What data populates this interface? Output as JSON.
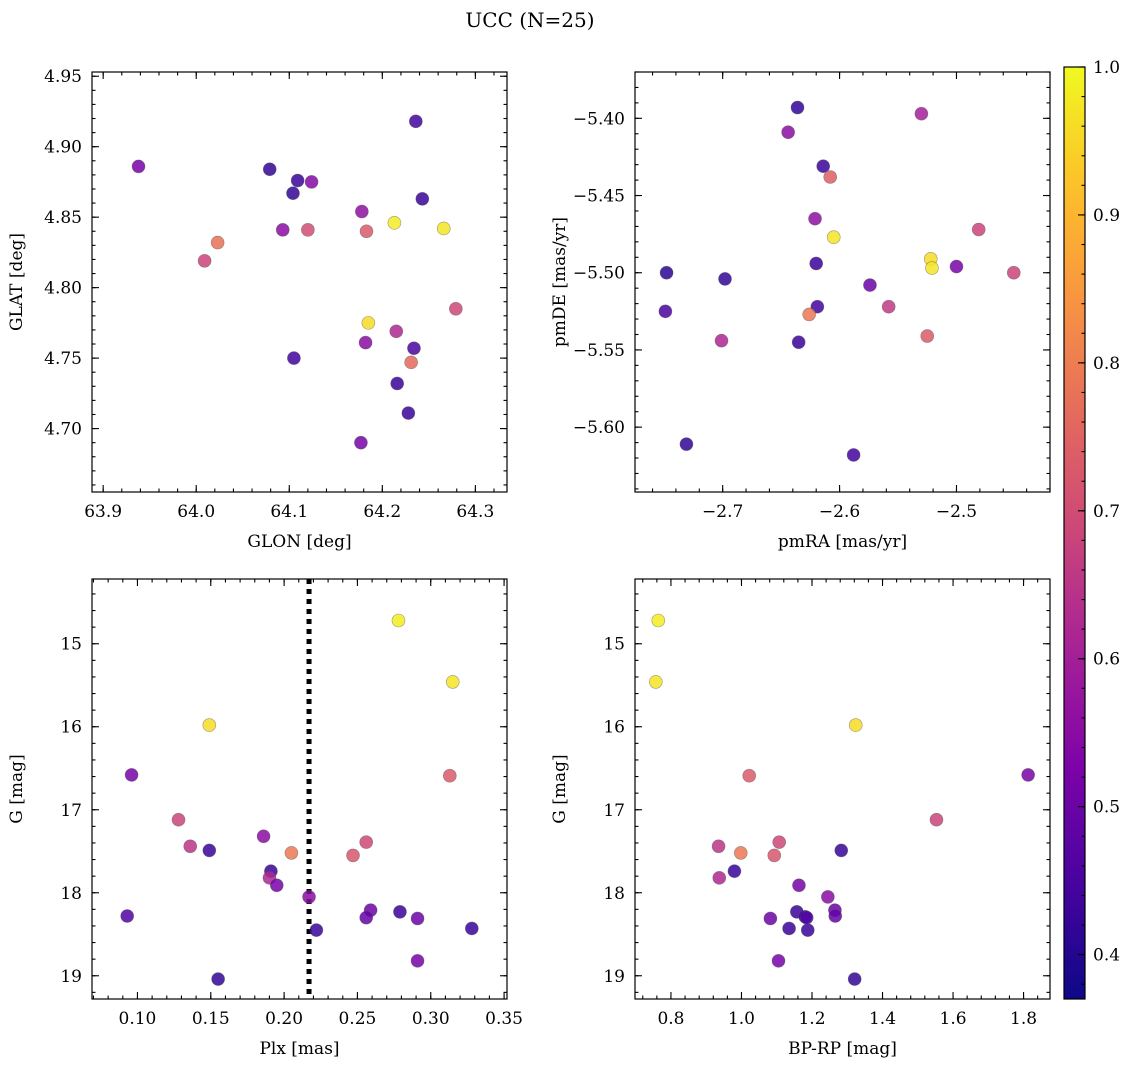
{
  "figure": {
    "title": "UCC (N=25)"
  },
  "colorbar": {
    "colormap": "plasma",
    "range": [
      0.37,
      1.0
    ],
    "ticks": [
      0.4,
      0.5,
      0.6,
      0.7,
      0.8,
      0.9,
      1.0
    ],
    "tick_labels": [
      "0.4",
      "0.5",
      "0.6",
      "0.7",
      "0.8",
      "0.9",
      "1.0"
    ],
    "label": ""
  },
  "chart_data": [
    {
      "id": "glon-glat",
      "type": "scatter",
      "xlabel": "GLON [deg]",
      "ylabel": "GLAT [deg]",
      "xlim": [
        63.888,
        64.334
      ],
      "ylim": [
        4.655,
        4.953
      ],
      "y_inverted": false,
      "xticks": [
        63.9,
        64.0,
        64.1,
        64.2,
        64.3
      ],
      "xtick_labels": [
        "63.9",
        "64.0",
        "64.1",
        "64.2",
        "64.3"
      ],
      "yticks": [
        4.7,
        4.75,
        4.8,
        4.85,
        4.9,
        4.95
      ],
      "ytick_labels": [
        "4.70",
        "4.75",
        "4.80",
        "4.85",
        "4.90",
        "4.95"
      ],
      "points": [
        {
          "x": 63.938,
          "y": 4.886,
          "c": 0.52
        },
        {
          "x": 64.023,
          "y": 4.832,
          "c": 0.78
        },
        {
          "x": 64.009,
          "y": 4.819,
          "c": 0.68
        },
        {
          "x": 64.079,
          "y": 4.884,
          "c": 0.42
        },
        {
          "x": 64.109,
          "y": 4.876,
          "c": 0.43
        },
        {
          "x": 64.124,
          "y": 4.875,
          "c": 0.54
        },
        {
          "x": 64.104,
          "y": 4.867,
          "c": 0.42
        },
        {
          "x": 64.093,
          "y": 4.841,
          "c": 0.55
        },
        {
          "x": 64.12,
          "y": 4.841,
          "c": 0.7
        },
        {
          "x": 64.105,
          "y": 4.75,
          "c": 0.44
        },
        {
          "x": 64.178,
          "y": 4.854,
          "c": 0.56
        },
        {
          "x": 64.183,
          "y": 4.84,
          "c": 0.73
        },
        {
          "x": 64.213,
          "y": 4.846,
          "c": 0.98
        },
        {
          "x": 64.266,
          "y": 4.842,
          "c": 0.97
        },
        {
          "x": 64.236,
          "y": 4.918,
          "c": 0.44
        },
        {
          "x": 64.243,
          "y": 4.863,
          "c": 0.43
        },
        {
          "x": 64.185,
          "y": 4.775,
          "c": 0.96
        },
        {
          "x": 64.215,
          "y": 4.769,
          "c": 0.62
        },
        {
          "x": 64.182,
          "y": 4.761,
          "c": 0.55
        },
        {
          "x": 64.234,
          "y": 4.757,
          "c": 0.45
        },
        {
          "x": 64.231,
          "y": 4.747,
          "c": 0.76
        },
        {
          "x": 64.216,
          "y": 4.732,
          "c": 0.43
        },
        {
          "x": 64.228,
          "y": 4.711,
          "c": 0.43
        },
        {
          "x": 64.177,
          "y": 4.69,
          "c": 0.52
        },
        {
          "x": 64.279,
          "y": 4.785,
          "c": 0.69
        }
      ]
    },
    {
      "id": "pmra-pmde",
      "type": "scatter",
      "xlabel": "pmRA [mas/yr]",
      "ylabel": "pmDE [mas/yr]",
      "xlim": [
        -2.775,
        -2.42
      ],
      "ylim": [
        -5.642,
        -5.37
      ],
      "y_inverted": false,
      "xticks": [
        -2.7,
        -2.6,
        -2.5
      ],
      "xtick_labels": [
        "−2.7",
        "−2.6",
        "−2.5"
      ],
      "yticks": [
        -5.6,
        -5.55,
        -5.5,
        -5.45,
        -5.4
      ],
      "ytick_labels": [
        "−5.60",
        "−5.55",
        "−5.50",
        "−5.45",
        "−5.40"
      ],
      "points": [
        {
          "x": -2.636,
          "y": -5.393,
          "c": 0.42
        },
        {
          "x": -2.644,
          "y": -5.409,
          "c": 0.55
        },
        {
          "x": -2.53,
          "y": -5.397,
          "c": 0.6
        },
        {
          "x": -2.614,
          "y": -5.431,
          "c": 0.43
        },
        {
          "x": -2.608,
          "y": -5.438,
          "c": 0.74
        },
        {
          "x": -2.621,
          "y": -5.465,
          "c": 0.56
        },
        {
          "x": -2.605,
          "y": -5.477,
          "c": 0.97
        },
        {
          "x": -2.481,
          "y": -5.472,
          "c": 0.68
        },
        {
          "x": -2.748,
          "y": -5.5,
          "c": 0.41
        },
        {
          "x": -2.698,
          "y": -5.504,
          "c": 0.42
        },
        {
          "x": -2.62,
          "y": -5.494,
          "c": 0.43
        },
        {
          "x": -2.522,
          "y": -5.491,
          "c": 0.96
        },
        {
          "x": -2.521,
          "y": -5.497,
          "c": 0.97
        },
        {
          "x": -2.5,
          "y": -5.496,
          "c": 0.52
        },
        {
          "x": -2.451,
          "y": -5.5,
          "c": 0.68
        },
        {
          "x": -2.574,
          "y": -5.508,
          "c": 0.5
        },
        {
          "x": -2.749,
          "y": -5.525,
          "c": 0.45
        },
        {
          "x": -2.619,
          "y": -5.522,
          "c": 0.44
        },
        {
          "x": -2.558,
          "y": -5.522,
          "c": 0.66
        },
        {
          "x": -2.626,
          "y": -5.527,
          "c": 0.79
        },
        {
          "x": -2.525,
          "y": -5.541,
          "c": 0.73
        },
        {
          "x": -2.701,
          "y": -5.544,
          "c": 0.62
        },
        {
          "x": -2.635,
          "y": -5.545,
          "c": 0.43
        },
        {
          "x": -2.731,
          "y": -5.611,
          "c": 0.42
        },
        {
          "x": -2.588,
          "y": -5.618,
          "c": 0.44
        }
      ]
    },
    {
      "id": "plx-g",
      "type": "scatter",
      "xlabel": "Plx [mas]",
      "ylabel": "G [mag]",
      "xlim": [
        0.069,
        0.352
      ],
      "ylim": [
        19.28,
        14.22
      ],
      "y_inverted": true,
      "xticks": [
        0.1,
        0.15,
        0.2,
        0.25,
        0.3,
        0.35
      ],
      "xtick_labels": [
        "0.10",
        "0.15",
        "0.20",
        "0.25",
        "0.30",
        "0.35"
      ],
      "yticks": [
        15,
        16,
        17,
        18,
        19
      ],
      "ytick_labels": [
        "15",
        "16",
        "17",
        "18",
        "19"
      ],
      "vline": {
        "x": 0.217,
        "style": "dotted"
      },
      "points": [
        {
          "x": 0.278,
          "y": 14.72,
          "c": 0.98
        },
        {
          "x": 0.315,
          "y": 15.46,
          "c": 0.97
        },
        {
          "x": 0.149,
          "y": 15.98,
          "c": 0.96
        },
        {
          "x": 0.096,
          "y": 16.58,
          "c": 0.52
        },
        {
          "x": 0.313,
          "y": 16.59,
          "c": 0.73
        },
        {
          "x": 0.128,
          "y": 17.12,
          "c": 0.68
        },
        {
          "x": 0.186,
          "y": 17.32,
          "c": 0.55
        },
        {
          "x": 0.136,
          "y": 17.44,
          "c": 0.65
        },
        {
          "x": 0.149,
          "y": 17.49,
          "c": 0.43
        },
        {
          "x": 0.205,
          "y": 17.52,
          "c": 0.79
        },
        {
          "x": 0.256,
          "y": 17.39,
          "c": 0.69
        },
        {
          "x": 0.247,
          "y": 17.55,
          "c": 0.72
        },
        {
          "x": 0.191,
          "y": 17.74,
          "c": 0.43
        },
        {
          "x": 0.19,
          "y": 17.82,
          "c": 0.62
        },
        {
          "x": 0.195,
          "y": 17.91,
          "c": 0.52
        },
        {
          "x": 0.217,
          "y": 18.05,
          "c": 0.55
        },
        {
          "x": 0.093,
          "y": 18.28,
          "c": 0.46
        },
        {
          "x": 0.259,
          "y": 18.21,
          "c": 0.5
        },
        {
          "x": 0.256,
          "y": 18.3,
          "c": 0.49
        },
        {
          "x": 0.279,
          "y": 18.23,
          "c": 0.43
        },
        {
          "x": 0.291,
          "y": 18.31,
          "c": 0.5
        },
        {
          "x": 0.222,
          "y": 18.45,
          "c": 0.43
        },
        {
          "x": 0.328,
          "y": 18.43,
          "c": 0.43
        },
        {
          "x": 0.291,
          "y": 18.82,
          "c": 0.52
        },
        {
          "x": 0.155,
          "y": 19.04,
          "c": 0.42
        }
      ]
    },
    {
      "id": "bprp-g",
      "type": "scatter",
      "xlabel": "BP-RP [mag]",
      "ylabel": "G [mag]",
      "xlim": [
        0.698,
        1.875
      ],
      "ylim": [
        19.28,
        14.22
      ],
      "y_inverted": true,
      "xticks": [
        0.8,
        1.0,
        1.2,
        1.4,
        1.6,
        1.8
      ],
      "xtick_labels": [
        "0.8",
        "1.0",
        "1.2",
        "1.4",
        "1.6",
        "1.8"
      ],
      "yticks": [
        15,
        16,
        17,
        18,
        19
      ],
      "ytick_labels": [
        "15",
        "16",
        "17",
        "18",
        "19"
      ],
      "points": [
        {
          "x": 0.764,
          "y": 14.72,
          "c": 0.98
        },
        {
          "x": 0.757,
          "y": 15.46,
          "c": 0.97
        },
        {
          "x": 1.324,
          "y": 15.98,
          "c": 0.96
        },
        {
          "x": 1.022,
          "y": 16.59,
          "c": 0.73
        },
        {
          "x": 1.813,
          "y": 16.58,
          "c": 0.52
        },
        {
          "x": 1.553,
          "y": 17.12,
          "c": 0.68
        },
        {
          "x": 0.935,
          "y": 17.44,
          "c": 0.65
        },
        {
          "x": 1.107,
          "y": 17.39,
          "c": 0.69
        },
        {
          "x": 0.998,
          "y": 17.52,
          "c": 0.79
        },
        {
          "x": 1.093,
          "y": 17.55,
          "c": 0.72
        },
        {
          "x": 1.283,
          "y": 17.49,
          "c": 0.43
        },
        {
          "x": 0.98,
          "y": 17.74,
          "c": 0.43
        },
        {
          "x": 0.937,
          "y": 17.82,
          "c": 0.62
        },
        {
          "x": 1.163,
          "y": 17.91,
          "c": 0.52
        },
        {
          "x": 1.245,
          "y": 18.05,
          "c": 0.55
        },
        {
          "x": 1.265,
          "y": 18.21,
          "c": 0.5
        },
        {
          "x": 1.266,
          "y": 18.28,
          "c": 0.49
        },
        {
          "x": 1.157,
          "y": 18.23,
          "c": 0.43
        },
        {
          "x": 1.181,
          "y": 18.29,
          "c": 0.43
        },
        {
          "x": 1.082,
          "y": 18.31,
          "c": 0.5
        },
        {
          "x": 1.135,
          "y": 18.43,
          "c": 0.43
        },
        {
          "x": 1.188,
          "y": 18.45,
          "c": 0.43
        },
        {
          "x": 1.105,
          "y": 18.82,
          "c": 0.52
        },
        {
          "x": 1.321,
          "y": 19.04,
          "c": 0.42
        },
        {
          "x": 1.185,
          "y": 18.3,
          "c": 0.46
        }
      ]
    }
  ]
}
